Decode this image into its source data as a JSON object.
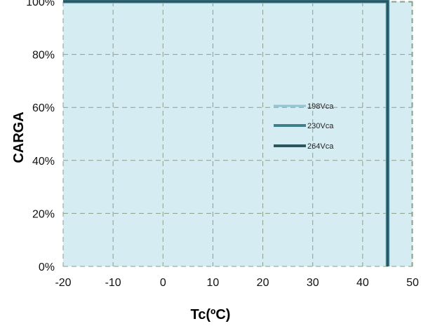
{
  "chart_data": {
    "type": "line",
    "title": "",
    "xlabel": "Tc(ºC)",
    "ylabel": "CARGA",
    "xlim": [
      -20,
      50
    ],
    "ylim": [
      0,
      100
    ],
    "x_ticks": [
      -20,
      -10,
      0,
      10,
      20,
      30,
      40,
      50
    ],
    "y_ticks": [
      0,
      20,
      40,
      60,
      80,
      100
    ],
    "x_tick_labels": [
      "-20",
      "-10",
      "0",
      "10",
      "20",
      "30",
      "40",
      "50"
    ],
    "y_tick_labels": [
      "0%",
      "20%",
      "40%",
      "60%",
      "80%",
      "100%"
    ],
    "grid": true,
    "legend_position": "center-right",
    "series": [
      {
        "name": "198Vca",
        "color": "#8fc3d6",
        "x": [
          -20,
          45,
          45
        ],
        "y": [
          100,
          100,
          0
        ]
      },
      {
        "name": "230Vca",
        "color": "#3f7f8c",
        "x": [
          -20,
          45,
          45
        ],
        "y": [
          100,
          100,
          0
        ]
      },
      {
        "name": "264Vca",
        "color": "#2c5560",
        "x": [
          -20,
          45,
          45
        ],
        "y": [
          100,
          100,
          0
        ]
      }
    ],
    "plot_background": "#d6ecf3",
    "grid_color": "#8a9f8a"
  }
}
